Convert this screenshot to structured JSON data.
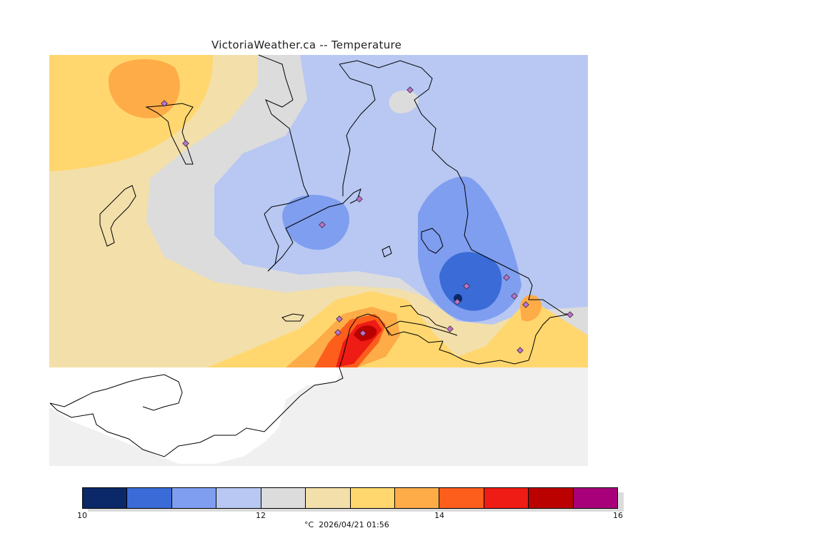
{
  "title": "VictoriaWeather.ca -- Temperature",
  "colors": {
    "no_data": "#f0f0f0",
    "coast": "#000000",
    "station": "#c070d0"
  },
  "legend": {
    "levels": [
      "#0b2868",
      "#3a6bd6",
      "#7f9ef0",
      "#b8c8f2",
      "#dcdcdc",
      "#f3dfaa",
      "#ffd76e",
      "#fdac48",
      "#fd5e1c",
      "#ee1c14",
      "#bb0000",
      "#a8007a"
    ],
    "ticks": [
      {
        "label": "10",
        "value": 10
      },
      {
        "label": "12",
        "value": 12
      },
      {
        "label": "14",
        "value": 14
      },
      {
        "label": "16",
        "value": 16
      }
    ],
    "range": [
      10,
      16
    ]
  },
  "caption": "°C  2026/04/21 01:56"
}
